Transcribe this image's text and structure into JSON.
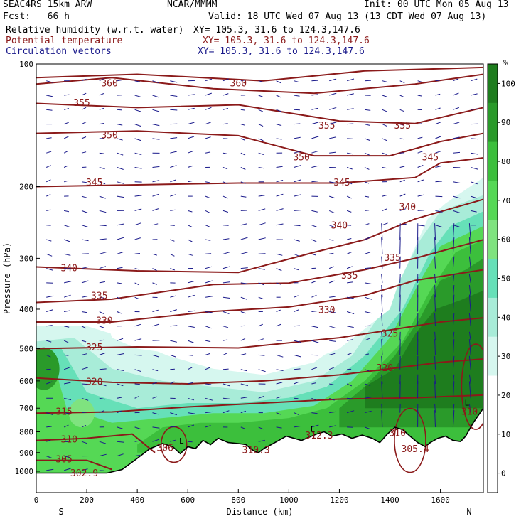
{
  "header": {
    "model": "SEAC4RS 15km ARW",
    "org": "NCAR/MMMM",
    "init": "Init: 00 UTC Mon 05 Aug 13",
    "fcst": "Fcst:   66 h",
    "valid": "Valid: 18 UTC Wed 07 Aug 13 (13 CDT Wed 07 Aug 13)",
    "field1": "Relative humidity (w.r.t. water)",
    "field1_xy": "XY= 105.3, 31.6 to 124.3,147.6",
    "field2": "Potential temperature",
    "field2_xy": "XY= 105.3, 31.6 to 124.3,147.6",
    "field3": "Circulation vectors",
    "field3_xy": "XY= 105.3, 31.6 to 124.3,147.6"
  },
  "colors": {
    "ptemp": "#8b1a1a",
    "vectors": "#1a1a8b",
    "terrain": "#000000"
  },
  "chart_data": {
    "type": "heatmap",
    "xlabel": "Distance (km)",
    "ylabel": "Pressure (hPa)",
    "xlim": [
      0,
      1770
    ],
    "ylim": [
      1050,
      100
    ],
    "yscale": "log",
    "x_ticks": [
      "0",
      "200",
      "400",
      "600",
      "800",
      "1000",
      "1200",
      "1400",
      "1600"
    ],
    "x_tick_values": [
      0,
      200,
      400,
      600,
      800,
      1000,
      1200,
      1400,
      1600
    ],
    "y_ticks": [
      "100",
      "200",
      "300",
      "400",
      "500",
      "600",
      "700",
      "800",
      "900",
      "1000"
    ],
    "y_tick_values": [
      100,
      200,
      300,
      400,
      500,
      600,
      700,
      800,
      900,
      1000
    ],
    "endpoint_labels": {
      "left": "S",
      "right": "N"
    },
    "colorbar": {
      "unit": "%",
      "labels": [
        "100",
        "90",
        "80",
        "70",
        "60",
        "50",
        "40",
        "30",
        "20",
        "10",
        "0"
      ],
      "levels": [
        105,
        100,
        95,
        90,
        85,
        80,
        75,
        70,
        65,
        60,
        55,
        50,
        45,
        40,
        35,
        30,
        25,
        20,
        15,
        10,
        5,
        0,
        -5
      ],
      "colors": [
        "#1e7d1e",
        "#1e7d1e",
        "#2a9a2a",
        "#2a9a2a",
        "#3cbf3c",
        "#3cbf3c",
        "#55d855",
        "#55d855",
        "#7fe37f",
        "#7fe37f",
        "#66e0b8",
        "#66e0b8",
        "#a8ecd8",
        "#a8ecd8",
        "#d6f7ef",
        "#d6f7ef",
        "#ffffff",
        "#ffffff",
        "#ffffff",
        "#ffffff",
        "#ffffff",
        "#ffffff"
      ]
    },
    "theta_labels": [
      {
        "text": "360",
        "x": 290,
        "p": 112
      },
      {
        "text": "360",
        "x": 800,
        "p": 112
      },
      {
        "text": "355",
        "x": 180,
        "p": 125
      },
      {
        "text": "355",
        "x": 1150,
        "p": 142
      },
      {
        "text": "355",
        "x": 1450,
        "p": 142
      },
      {
        "text": "350",
        "x": 290,
        "p": 150
      },
      {
        "text": "350",
        "x": 1050,
        "p": 170
      },
      {
        "text": "345",
        "x": 230,
        "p": 196
      },
      {
        "text": "345",
        "x": 1210,
        "p": 196
      },
      {
        "text": "345",
        "x": 1560,
        "p": 170
      },
      {
        "text": "340",
        "x": 130,
        "p": 318
      },
      {
        "text": "340",
        "x": 1200,
        "p": 250
      },
      {
        "text": "340",
        "x": 1470,
        "p": 225
      },
      {
        "text": "335",
        "x": 250,
        "p": 372
      },
      {
        "text": "335",
        "x": 1240,
        "p": 332
      },
      {
        "text": "335",
        "x": 1410,
        "p": 300
      },
      {
        "text": "330",
        "x": 270,
        "p": 428
      },
      {
        "text": "330",
        "x": 1150,
        "p": 403
      },
      {
        "text": "325",
        "x": 230,
        "p": 498
      },
      {
        "text": "325",
        "x": 1400,
        "p": 460
      },
      {
        "text": "320",
        "x": 230,
        "p": 605
      },
      {
        "text": "320",
        "x": 1380,
        "p": 560
      },
      {
        "text": "315",
        "x": 110,
        "p": 716
      },
      {
        "text": "310",
        "x": 130,
        "p": 838
      },
      {
        "text": "310",
        "x": 1430,
        "p": 808
      },
      {
        "text": "310",
        "x": 1715,
        "p": 716
      },
      {
        "text": "312.3",
        "x": 1120,
        "p": 820
      },
      {
        "text": "310.3",
        "x": 870,
        "p": 890
      },
      {
        "text": "305.4",
        "x": 1500,
        "p": 885
      },
      {
        "text": "306",
        "x": 510,
        "p": 880
      },
      {
        "text": "305",
        "x": 110,
        "p": 938
      },
      {
        "text": "302.9",
        "x": 190,
        "p": 1014
      }
    ],
    "low_markers": [
      {
        "text": "L",
        "x": 575,
        "p": 855
      },
      {
        "text": "L",
        "x": 1095,
        "p": 800
      },
      {
        "text": "L",
        "x": 1705,
        "p": 690
      }
    ]
  }
}
